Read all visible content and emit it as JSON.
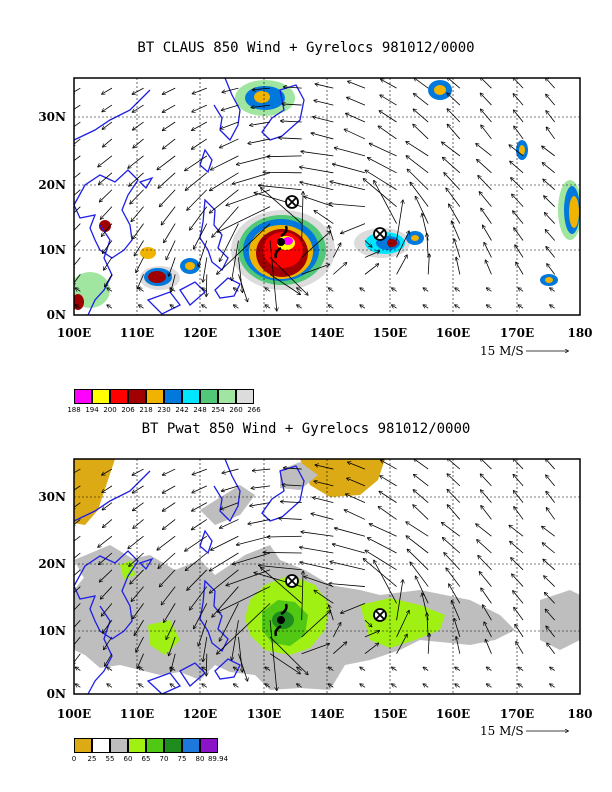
{
  "panels": [
    {
      "title": "BT CLAUS 850 Wind + Gyrelocs 981012/0000",
      "lon_ticks": [
        "100E",
        "110E",
        "120E",
        "130E",
        "140E",
        "150E",
        "160E",
        "170E",
        "180"
      ],
      "lat_ticks": [
        "0N",
        "10N",
        "20N",
        "30N"
      ],
      "ref_vector": "15 M/S",
      "colorbar": {
        "colors": [
          "#ff00ff",
          "#ffff00",
          "#ff0000",
          "#a00000",
          "#f0b400",
          "#0078dc",
          "#00e6ff",
          "#50c878",
          "#a0e6a0",
          "#dcdcdc"
        ],
        "labels": [
          "188",
          "194",
          "200",
          "206",
          "218",
          "230",
          "242",
          "248",
          "254",
          "260",
          "266"
        ]
      }
    },
    {
      "title": "BT Pwat 850 Wind + Gyrelocs 981012/0000",
      "lon_ticks": [
        "100E",
        "110E",
        "120E",
        "130E",
        "140E",
        "150E",
        "160E",
        "170E",
        "180"
      ],
      "lat_ticks": [
        "0N",
        "10N",
        "20N",
        "30N"
      ],
      "ref_vector": "15 M/S",
      "colorbar": {
        "colors": [
          "#dcaa14",
          "#ffffff",
          "#bebebe",
          "#a0f014",
          "#50c814",
          "#1e8c1e",
          "#1e78dc",
          "#8c14c8"
        ],
        "labels": [
          "0",
          "25",
          "55",
          "60",
          "65",
          "70",
          "75",
          "80",
          "89.94"
        ]
      }
    }
  ],
  "chart_data": {
    "type": "map",
    "region": {
      "lon_range": [
        100,
        180
      ],
      "lat_range": [
        0,
        35
      ]
    },
    "gyre_locations": [
      {
        "lon": 134.5,
        "lat": 17.5
      },
      {
        "lon": 148.5,
        "lat": 12.5
      }
    ],
    "typhoon_symbol": {
      "lon": 133,
      "lat": 11.5
    }
  }
}
